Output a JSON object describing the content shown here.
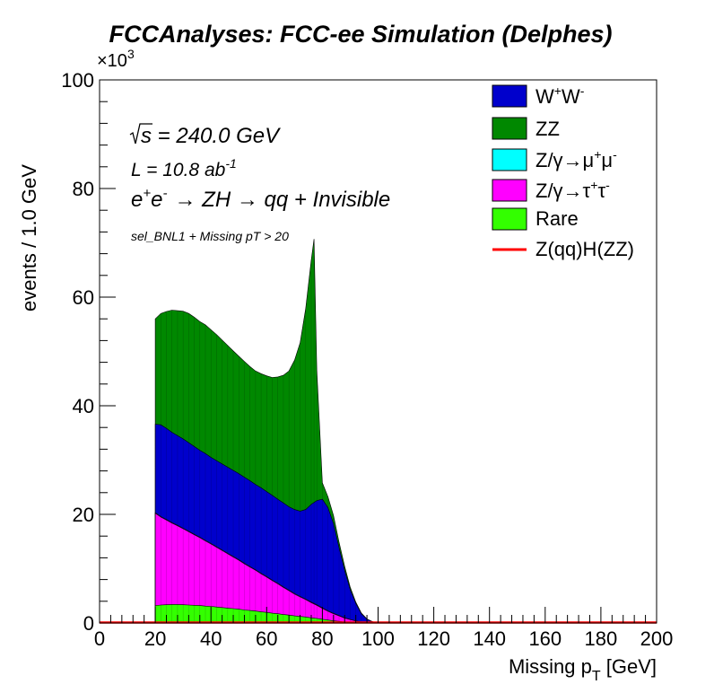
{
  "chart_data": {
    "type": "area",
    "title": "FCCAnalyses: FCC-ee Simulation (Delphes)",
    "xlabel": "Missing p",
    "xlabel_sub": "T",
    "xlabel_unit": " [GeV]",
    "ylabel": "events / 1.0 GeV",
    "y_multiplier_base": "×10",
    "y_multiplier_exp": "3",
    "xlim": [
      0,
      200
    ],
    "ylim": [
      0,
      100000
    ],
    "xticks": [
      0,
      20,
      40,
      60,
      80,
      100,
      120,
      140,
      160,
      180,
      200
    ],
    "xtick_labels": [
      "0",
      "20",
      "40",
      "60",
      "80",
      "100",
      "120",
      "140",
      "160",
      "180",
      "200"
    ],
    "yticks": [
      0,
      20000,
      40000,
      60000,
      80000,
      100000
    ],
    "ytick_labels": [
      "0",
      "20",
      "40",
      "60",
      "80",
      "100"
    ],
    "stacked": true,
    "x": [
      20,
      22,
      24,
      26,
      28,
      30,
      32,
      34,
      36,
      38,
      40,
      42,
      44,
      46,
      48,
      50,
      52,
      54,
      56,
      58,
      60,
      62,
      64,
      66,
      68,
      70,
      72,
      74,
      76,
      77,
      78,
      80,
      82,
      84,
      86,
      88,
      90,
      92,
      94,
      96,
      98,
      100,
      102,
      104
    ],
    "series": [
      {
        "name": "Rare",
        "color": "#33ff00",
        "values": [
          3200,
          3300,
          3350,
          3400,
          3400,
          3350,
          3300,
          3250,
          3200,
          3100,
          3050,
          2950,
          2850,
          2750,
          2650,
          2550,
          2400,
          2300,
          2200,
          2050,
          1950,
          1800,
          1700,
          1550,
          1450,
          1300,
          1200,
          1100,
          950,
          900,
          850,
          700,
          550,
          400,
          300,
          200,
          120,
          60,
          30,
          10,
          5,
          0,
          0,
          0
        ]
      },
      {
        "name": "Z/γ→τ⁺τ⁻",
        "color": "#ff00ff",
        "values": [
          17000,
          16200,
          15600,
          15000,
          14500,
          14000,
          13500,
          13000,
          12500,
          12000,
          11500,
          11000,
          10500,
          10000,
          9500,
          9000,
          8500,
          8000,
          7500,
          7000,
          6500,
          6000,
          5500,
          5000,
          4500,
          4000,
          3600,
          3200,
          2800,
          2600,
          2400,
          2000,
          1600,
          1300,
          1000,
          700,
          500,
          300,
          150,
          80,
          30,
          0,
          0,
          0
        ]
      },
      {
        "name": "Z/γ→μ⁺μ⁻",
        "color": "#00ffff",
        "values": [
          100,
          100,
          100,
          100,
          100,
          100,
          100,
          100,
          100,
          100,
          100,
          100,
          100,
          100,
          100,
          100,
          100,
          100,
          100,
          100,
          100,
          100,
          100,
          100,
          100,
          100,
          100,
          100,
          100,
          100,
          100,
          100,
          100,
          100,
          80,
          60,
          40,
          20,
          10,
          5,
          0,
          0,
          0,
          0
        ]
      },
      {
        "name": "W⁺W⁻",
        "color": "#0000cc",
        "values": [
          16300,
          16900,
          16800,
          16600,
          16500,
          16450,
          16300,
          16150,
          16000,
          16000,
          15850,
          15850,
          15850,
          15850,
          15850,
          15850,
          15850,
          15800,
          15700,
          15750,
          15650,
          15600,
          15500,
          15450,
          15350,
          15500,
          15700,
          16500,
          18000,
          18600,
          19200,
          20000,
          19000,
          16500,
          12500,
          8800,
          5500,
          3200,
          1500,
          600,
          200,
          20,
          0,
          0
        ]
      },
      {
        "name": "ZZ",
        "color": "#008800",
        "values": [
          19400,
          20500,
          21500,
          22500,
          23000,
          23500,
          23800,
          23800,
          23700,
          23700,
          23500,
          23200,
          22800,
          22400,
          22000,
          21600,
          21300,
          21000,
          20900,
          21000,
          21300,
          21700,
          22500,
          23500,
          25000,
          27500,
          31000,
          37000,
          45000,
          48500,
          24000,
          3000,
          2000,
          1500,
          1000,
          700,
          450,
          250,
          120,
          50,
          20,
          0,
          0,
          0
        ]
      },
      {
        "name": "Z(qq)H(ZZ)",
        "color": "#ff0000",
        "type": "line",
        "values": [
          150,
          150,
          150,
          150,
          150,
          150,
          150,
          150,
          150,
          150,
          150,
          150,
          150,
          150,
          150,
          150,
          150,
          150,
          150,
          150,
          150,
          150,
          150,
          150,
          150,
          150,
          150,
          150,
          150,
          150,
          150,
          150,
          150,
          150,
          100,
          80,
          60,
          40,
          20,
          10,
          5,
          0,
          0,
          0
        ]
      }
    ],
    "legend_order": [
      "W⁺W⁻",
      "ZZ",
      "Z/γ→μ⁺μ⁻",
      "Z/γ→τ⁺τ⁻",
      "Rare",
      "Z(qq)H(ZZ)"
    ],
    "legend_placement": "top-right",
    "grid": false,
    "annotations": {
      "sqrt_s_label": "s",
      "sqrt_s_value": " = 240.0 GeV",
      "lumi": "L = 10.8 ab",
      "lumi_exp": "-1",
      "process_a": "e",
      "process_b": "e",
      "process_c": "→ ZH → qq + Invisible",
      "selection": "sel_BNL1 + Missing pT > 20"
    }
  }
}
